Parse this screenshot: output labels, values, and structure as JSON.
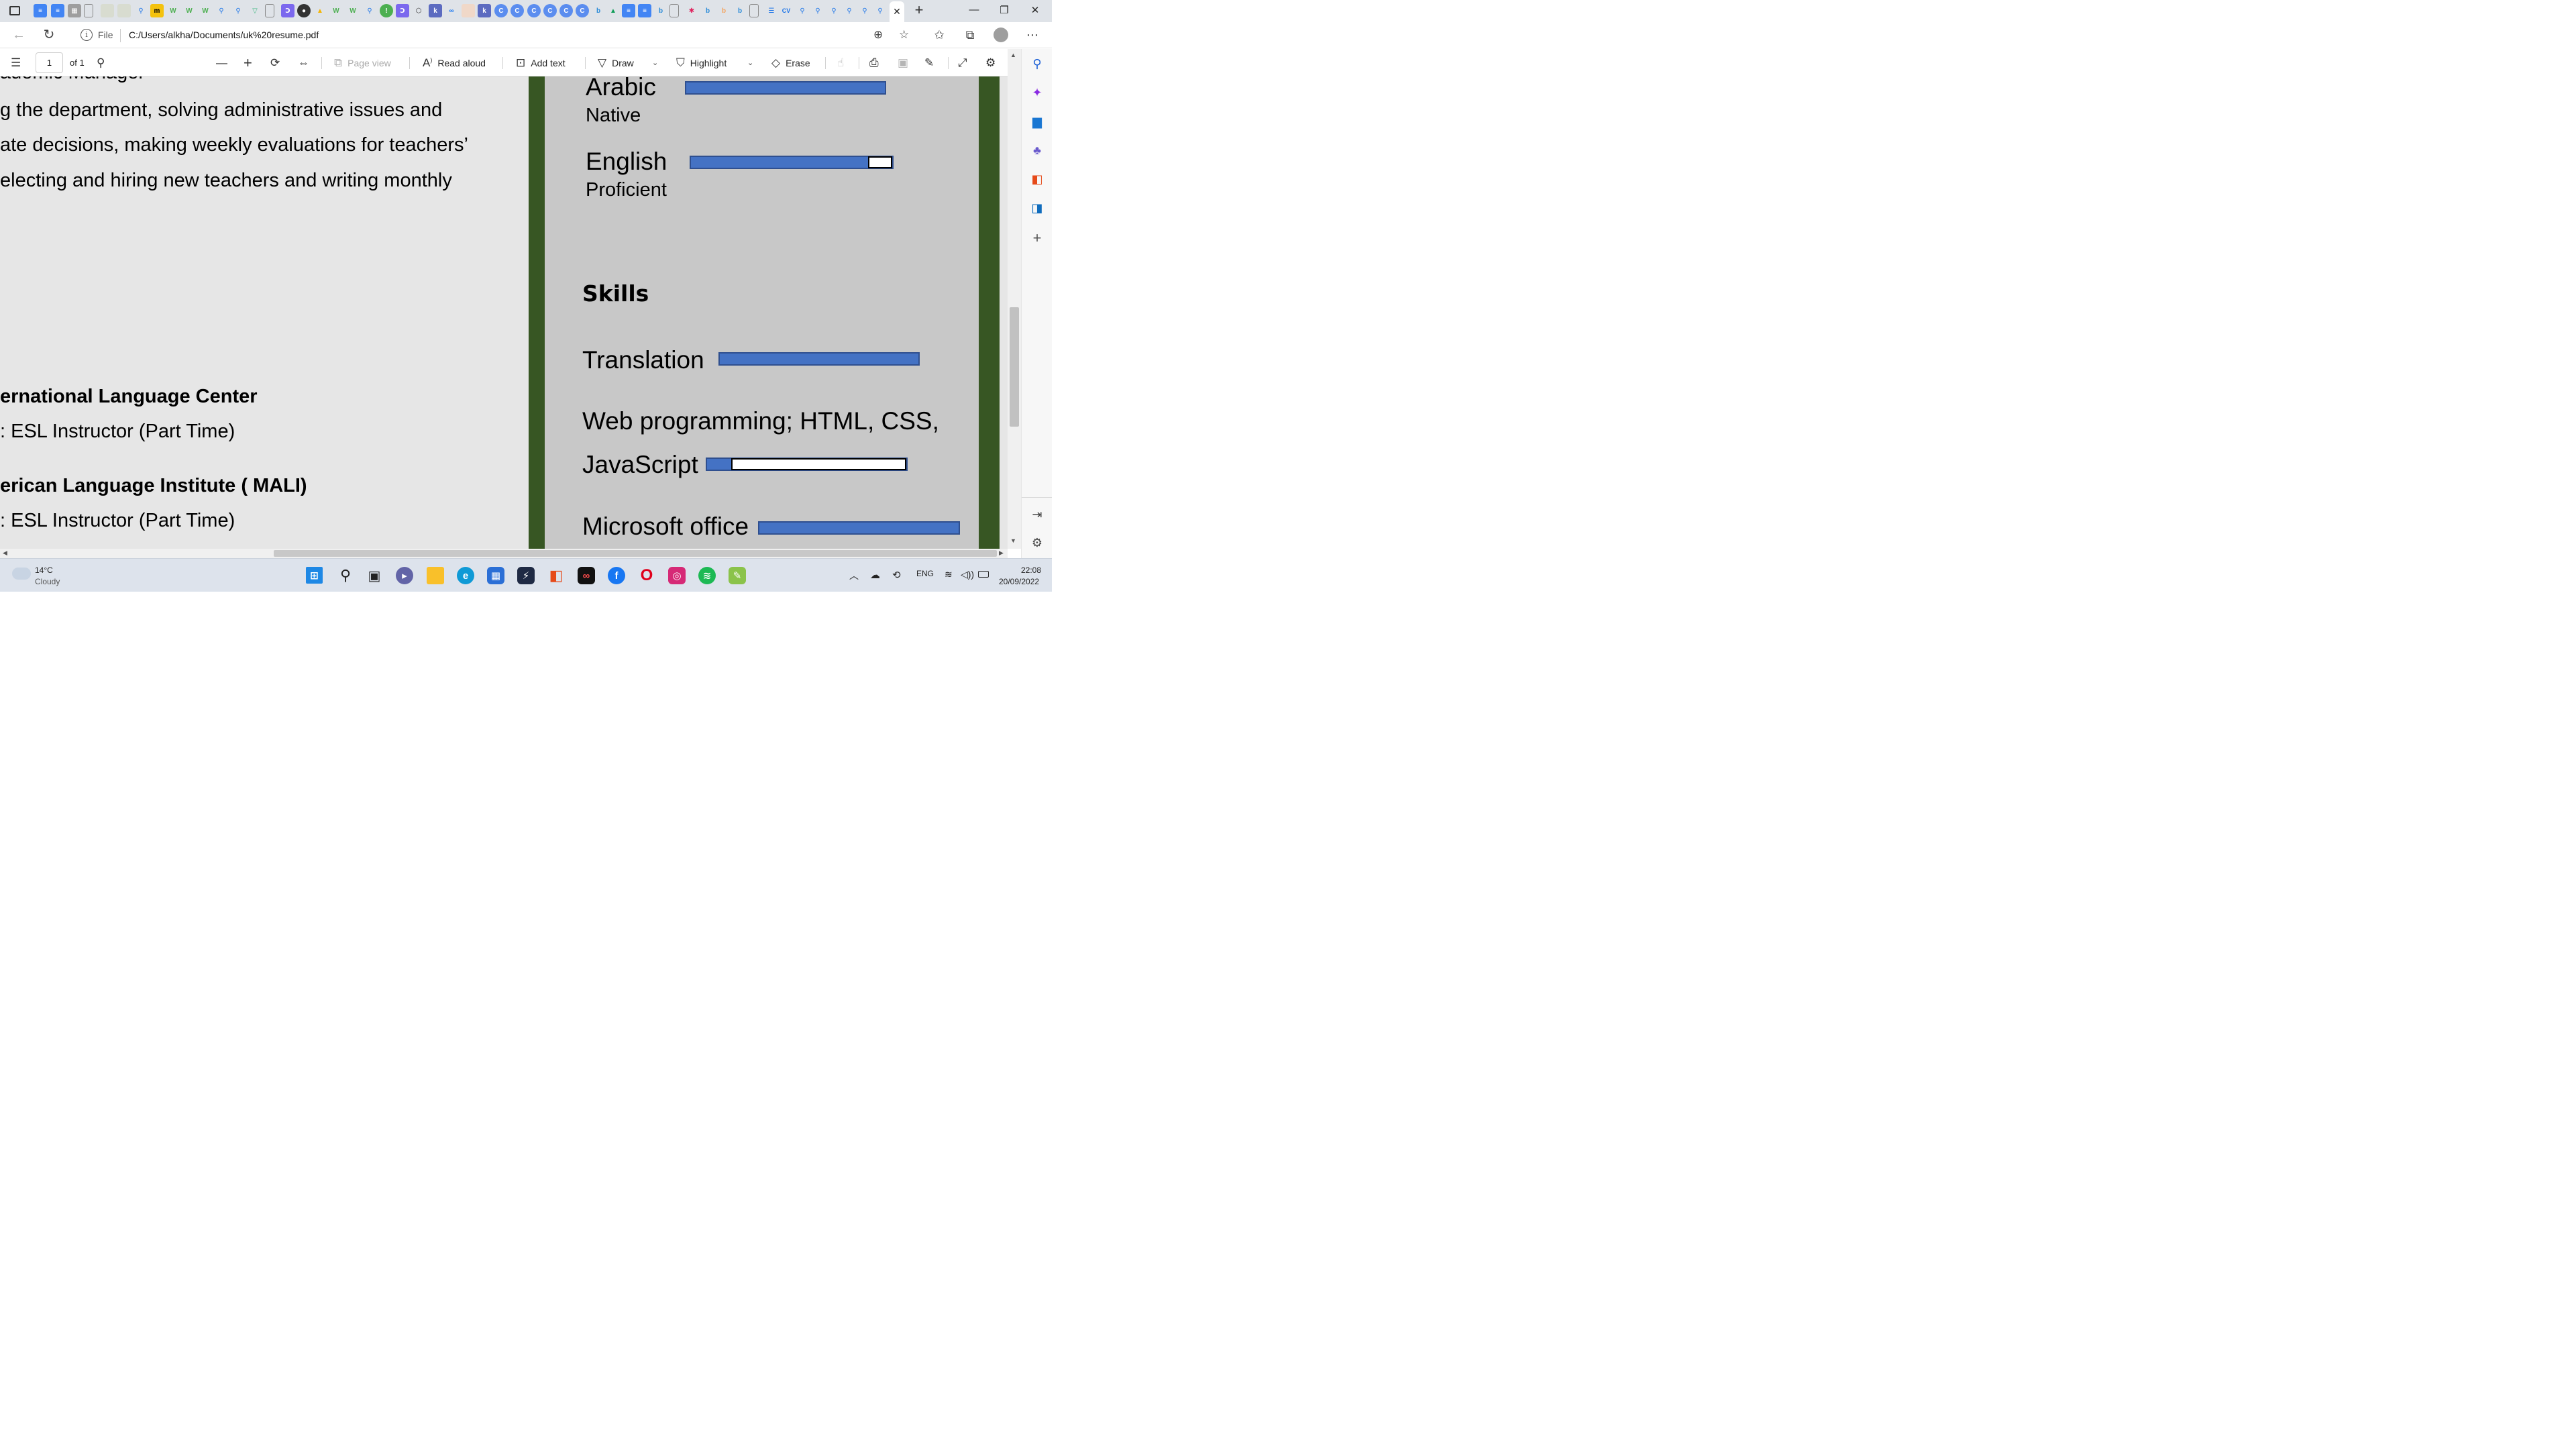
{
  "browser": {
    "active_tab_close": "✕",
    "new_tab": "+",
    "window_controls": {
      "minimize": "—",
      "maximize": "❐",
      "close": "✕"
    }
  },
  "address_bar": {
    "scheme_label": "File",
    "url": "C:/Users/alkha/Documents/uk%20resume.pdf"
  },
  "pdf_toolbar": {
    "page_number": "1",
    "page_total": "of 1",
    "page_view": "Page view",
    "read_aloud": "Read aloud",
    "add_text": "Add text",
    "draw": "Draw",
    "highlight": "Highlight",
    "erase": "Erase"
  },
  "document": {
    "left_column": {
      "lines": [
        "g the department, solving administrative issues and",
        "ate decisions, making weekly evaluations for teachers’",
        "electing and hiring new teachers and writing monthly"
      ],
      "top_partial": "ademic Manager",
      "job1_org": "ernational Language Center",
      "job1_role": ": ESL Instructor (Part Time)",
      "job2_org": "erican Language Institute ( MALI)",
      "job2_role": ": ESL Instructor (Part Time)"
    },
    "right_column": {
      "languages": [
        {
          "name": "Arabic",
          "level": "Native",
          "proficiency": 1.0
        },
        {
          "name": "English",
          "level": "Proficient",
          "proficiency": 0.88
        }
      ],
      "skills_heading": "Skills",
      "skills": [
        {
          "name": "Translation",
          "proficiency": 1.0
        },
        {
          "name": "Web programming; HTML, CSS,",
          "name_line2": "JavaScript",
          "proficiency": 0.12
        },
        {
          "name": "Microsoft office",
          "proficiency": 1.0
        }
      ]
    }
  },
  "taskbar": {
    "weather_temp": "14°C",
    "weather_desc": "Cloudy",
    "language": "ENG",
    "time": "22:08",
    "date": "20/09/2022"
  },
  "colors": {
    "accent_green": "#375623",
    "bar_blue": "#4472c4",
    "edge_blue": "#0f6cbd"
  }
}
